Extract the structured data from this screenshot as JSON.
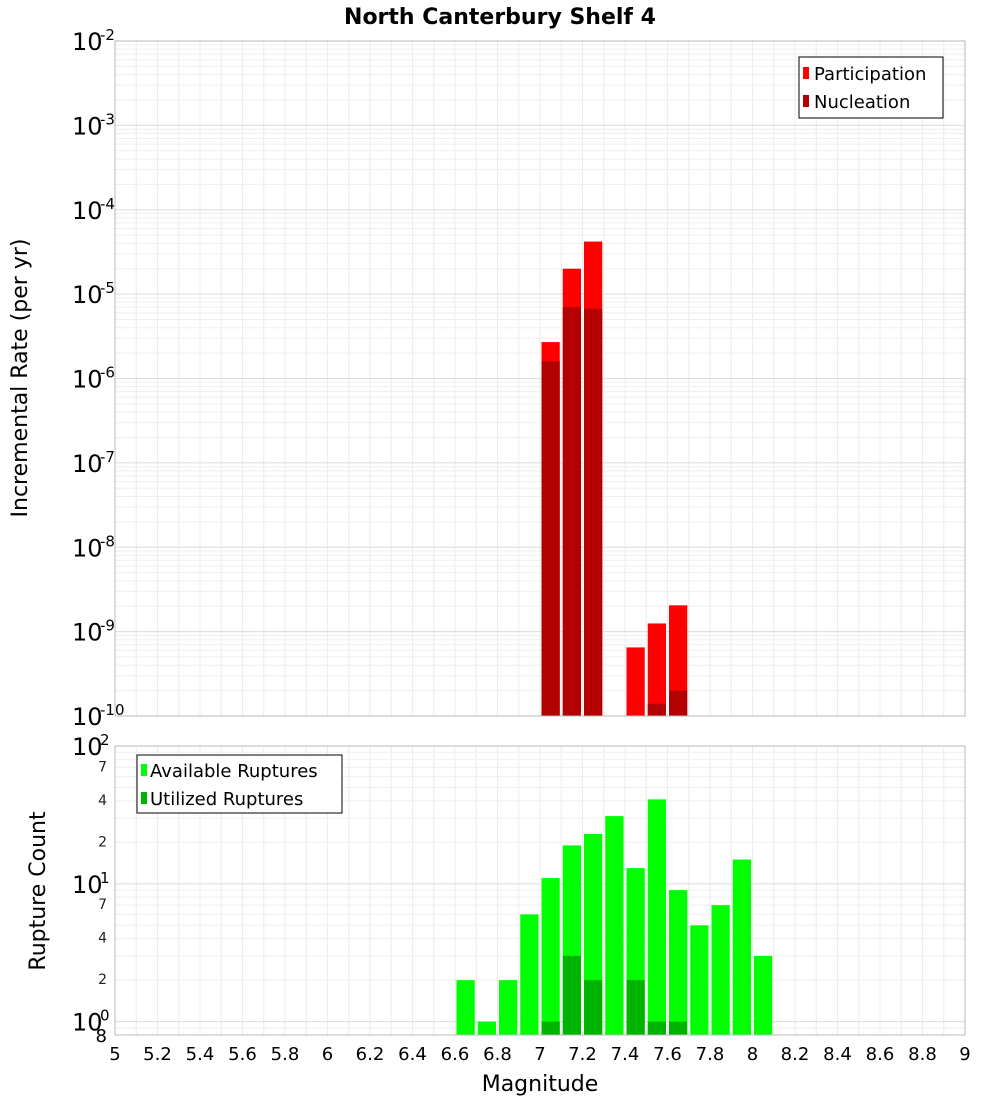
{
  "chart_data": [
    {
      "type": "bar",
      "title": "North Canterbury Shelf 4",
      "xlabel": "Magnitude",
      "ylabel": "Incremental Rate (per yr)",
      "yscale": "log",
      "ylim": [
        1e-10,
        0.01
      ],
      "xlim": [
        5,
        9
      ],
      "bar_width": 0.1,
      "grid": true,
      "legend": {
        "placement": "top-right"
      },
      "series": [
        {
          "name": "Participation",
          "color": "#ff0000",
          "x": [
            7.05,
            7.15,
            7.25,
            7.45,
            7.55,
            7.65
          ],
          "values": [
            2.7e-06,
            2e-05,
            4.2e-05,
            6.5e-10,
            1.25e-09,
            2.05e-09
          ]
        },
        {
          "name": "Nucleation",
          "color": "#b30000",
          "x": [
            7.05,
            7.15,
            7.25,
            7.55,
            7.65
          ],
          "values": [
            1.6e-06,
            7e-06,
            6.7e-06,
            1.4e-10,
            2e-10
          ]
        }
      ]
    },
    {
      "type": "bar",
      "xlabel": "Magnitude",
      "ylabel": "Rupture Count",
      "yscale": "log",
      "ylim": [
        0.8,
        100
      ],
      "xlim": [
        5,
        9
      ],
      "bar_width": 0.1,
      "grid": true,
      "legend": {
        "placement": "top-left"
      },
      "series": [
        {
          "name": "Available Ruptures",
          "color": "#00ff00",
          "x": [
            6.65,
            6.75,
            6.85,
            6.95,
            7.05,
            7.15,
            7.25,
            7.35,
            7.45,
            7.55,
            7.65,
            7.75,
            7.85,
            7.95,
            8.05
          ],
          "values": [
            2,
            1,
            2,
            6,
            11,
            19,
            23,
            31,
            13,
            41,
            9,
            5,
            7,
            15,
            3
          ]
        },
        {
          "name": "Utilized Ruptures",
          "color": "#00b300",
          "x": [
            7.05,
            7.15,
            7.25,
            7.45,
            7.55,
            7.65
          ],
          "values": [
            1,
            3,
            2,
            2,
            1,
            1
          ]
        }
      ]
    }
  ],
  "ticks": {
    "x": [
      "5",
      "5.2",
      "5.4",
      "5.6",
      "5.8",
      "6",
      "6.2",
      "6.4",
      "6.6",
      "6.8",
      "7",
      "7.2",
      "7.4",
      "7.6",
      "7.8",
      "8",
      "8.2",
      "8.4",
      "8.6",
      "8.8",
      "9"
    ],
    "top_y_base": "10",
    "top_y_exponents": [
      "-2",
      "-3",
      "-4",
      "-5",
      "-6",
      "-7",
      "-8",
      "-9",
      "-10"
    ],
    "bottom_y_major": [
      {
        "base": "10",
        "exp": "2"
      },
      {
        "base": "10",
        "exp": "1"
      },
      {
        "base": "10",
        "exp": "0"
      }
    ],
    "bottom_y_minor": [
      "7",
      "4",
      "2",
      "7",
      "4",
      "2",
      "8"
    ]
  }
}
